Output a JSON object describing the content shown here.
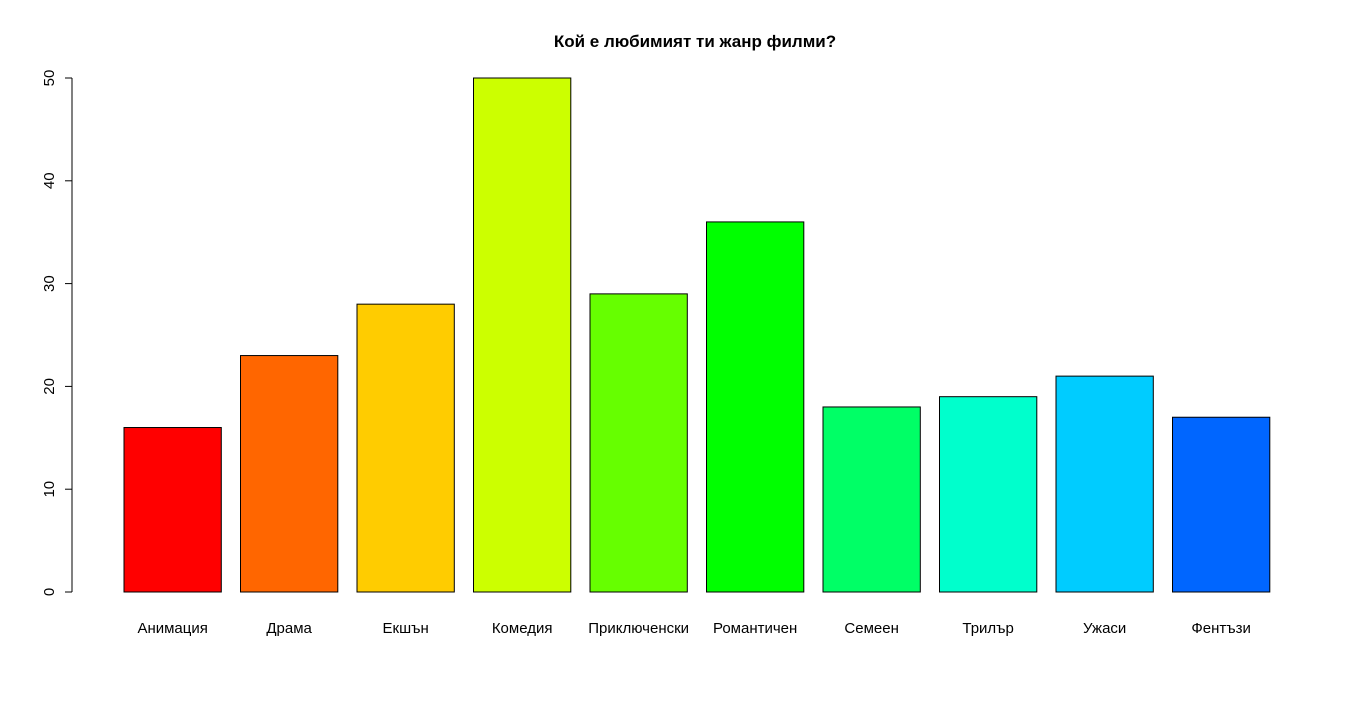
{
  "chart_data": {
    "type": "bar",
    "title": "Кой е любимият ти жанр филми?",
    "xlabel": "",
    "ylabel": "",
    "categories": [
      "Анимация",
      "Драма",
      "Екшън",
      "Комедия",
      "Приключенски",
      "Романтичен",
      "Семеен",
      "Трилър",
      "Ужаси",
      "Фентъзи"
    ],
    "values": [
      16,
      23,
      28,
      50,
      29,
      36,
      18,
      19,
      21,
      17
    ],
    "colors": [
      "#FF0000",
      "#FF6600",
      "#FFCC00",
      "#CCFF00",
      "#66FF00",
      "#00FF00",
      "#00FF66",
      "#00FFCC",
      "#00CCFF",
      "#0066FF"
    ],
    "ylim": [
      0,
      50
    ],
    "yticks": [
      0,
      10,
      20,
      30,
      40,
      50
    ],
    "ytick_labels": [
      "0",
      "10",
      "20",
      "30",
      "40",
      "50"
    ],
    "grid": false,
    "legend": "none"
  }
}
